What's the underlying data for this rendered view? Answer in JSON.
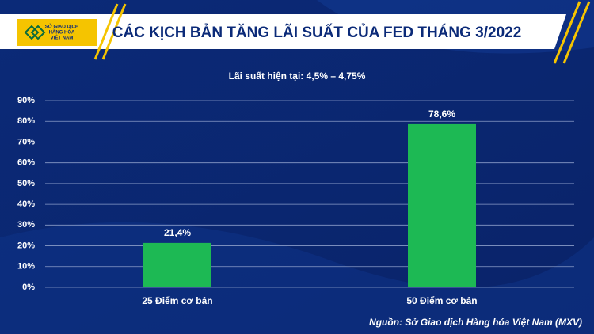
{
  "logo": {
    "lines": [
      "SỞ GIAO DỊCH",
      "HÀNG HÓA",
      "VIỆT NAM"
    ]
  },
  "chart_data": {
    "type": "bar",
    "title": "CÁC KỊCH BẢN TĂNG LÃI SUẤT CỦA FED THÁNG 3/2022",
    "subtitle": "Lãi suất hiện tại: 4,5% – 4,75%",
    "categories": [
      "25 Điểm cơ bản",
      "50 Điểm cơ bản"
    ],
    "values": [
      21.4,
      78.6
    ],
    "value_labels": [
      "21,4%",
      "78,6%"
    ],
    "color": "#1db954",
    "ylim": [
      0,
      90
    ],
    "yticks": [
      {
        "value": 0,
        "label": "0%"
      },
      {
        "value": 10,
        "label": "10%"
      },
      {
        "value": 20,
        "label": "20%"
      },
      {
        "value": 30,
        "label": "30%"
      },
      {
        "value": 40,
        "label": "40%"
      },
      {
        "value": 50,
        "label": "50%"
      },
      {
        "value": 60,
        "label": "60%"
      },
      {
        "value": 70,
        "label": "70%"
      },
      {
        "value": 80,
        "label": "80%"
      },
      {
        "value": 90,
        "label": "90%"
      }
    ],
    "grid": true,
    "source": "Nguồn: Sở Giao dịch Hàng hóa Việt Nam (MXV)"
  }
}
